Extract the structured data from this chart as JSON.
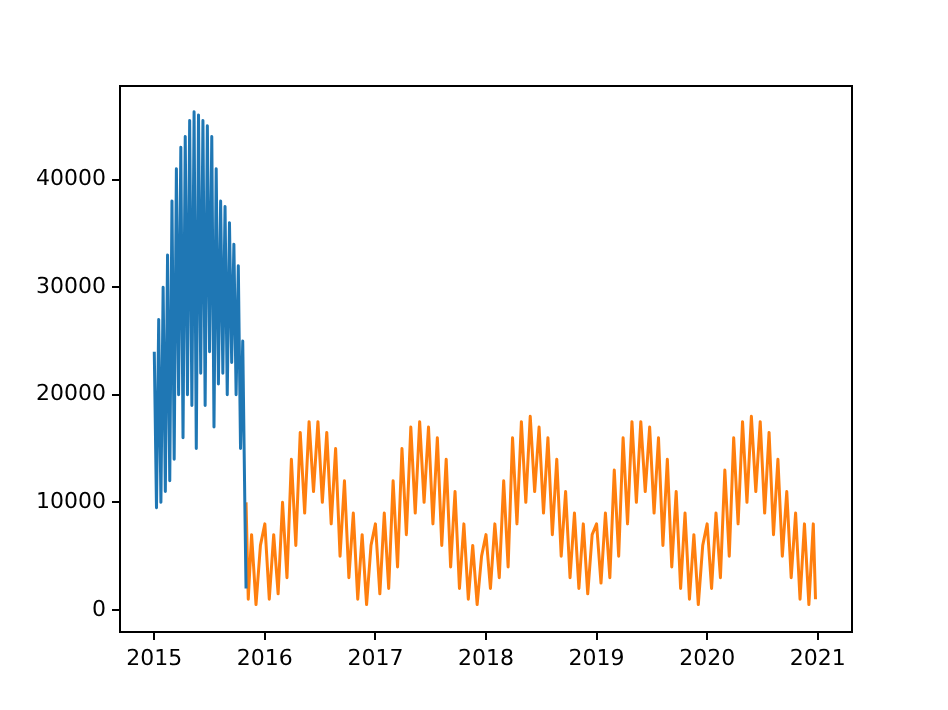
{
  "chart_data": {
    "type": "line",
    "xlim": [
      2014.69,
      2021.31
    ],
    "ylim": [
      -2050,
      48700
    ],
    "xticks": [
      2015,
      2016,
      2017,
      2018,
      2019,
      2020,
      2021
    ],
    "yticks": [
      0,
      10000,
      20000,
      30000,
      40000
    ],
    "series": [
      {
        "color": "#1f77b4",
        "x": [
          2015.0,
          2015.02,
          2015.04,
          2015.06,
          2015.08,
          2015.1,
          2015.12,
          2015.14,
          2015.16,
          2015.18,
          2015.2,
          2015.22,
          2015.24,
          2015.26,
          2015.28,
          2015.3,
          2015.32,
          2015.34,
          2015.36,
          2015.38,
          2015.4,
          2015.42,
          2015.44,
          2015.46,
          2015.48,
          2015.5,
          2015.52,
          2015.54,
          2015.56,
          2015.58,
          2015.6,
          2015.62,
          2015.64,
          2015.66,
          2015.68,
          2015.7,
          2015.72,
          2015.74,
          2015.76,
          2015.78,
          2015.8,
          2015.82,
          2015.83
        ],
        "values": [
          24000,
          9500,
          27000,
          10000,
          30000,
          11000,
          33000,
          12000,
          38000,
          14000,
          41000,
          20000,
          43000,
          16000,
          44000,
          20000,
          45500,
          19000,
          46300,
          15000,
          46000,
          22000,
          45500,
          19000,
          45000,
          24000,
          44000,
          17000,
          41000,
          21000,
          38000,
          22000,
          37500,
          20000,
          36000,
          23000,
          34000,
          20000,
          32000,
          15000,
          25000,
          9000,
          2000
        ]
      },
      {
        "color": "#ff7f0e",
        "x": [
          2015.83,
          2015.85,
          2015.88,
          2015.92,
          2015.96,
          2016.0,
          2016.04,
          2016.08,
          2016.12,
          2016.16,
          2016.2,
          2016.24,
          2016.28,
          2016.32,
          2016.36,
          2016.4,
          2016.44,
          2016.48,
          2016.52,
          2016.56,
          2016.6,
          2016.64,
          2016.68,
          2016.72,
          2016.76,
          2016.8,
          2016.84,
          2016.88,
          2016.92,
          2016.96,
          2017.0,
          2017.04,
          2017.08,
          2017.12,
          2017.16,
          2017.2,
          2017.24,
          2017.28,
          2017.32,
          2017.36,
          2017.4,
          2017.44,
          2017.48,
          2017.52,
          2017.56,
          2017.6,
          2017.64,
          2017.68,
          2017.72,
          2017.76,
          2017.8,
          2017.84,
          2017.88,
          2017.92,
          2017.96,
          2018.0,
          2018.04,
          2018.08,
          2018.12,
          2018.16,
          2018.2,
          2018.24,
          2018.28,
          2018.32,
          2018.36,
          2018.4,
          2018.44,
          2018.48,
          2018.52,
          2018.56,
          2018.6,
          2018.64,
          2018.68,
          2018.72,
          2018.76,
          2018.8,
          2018.84,
          2018.88,
          2018.92,
          2018.96,
          2019.0,
          2019.04,
          2019.08,
          2019.12,
          2019.16,
          2019.2,
          2019.24,
          2019.28,
          2019.32,
          2019.36,
          2019.4,
          2019.44,
          2019.48,
          2019.52,
          2019.56,
          2019.6,
          2019.64,
          2019.68,
          2019.72,
          2019.76,
          2019.8,
          2019.84,
          2019.88,
          2019.92,
          2019.96,
          2020.0,
          2020.04,
          2020.08,
          2020.12,
          2020.16,
          2020.2,
          2020.24,
          2020.28,
          2020.32,
          2020.36,
          2020.4,
          2020.44,
          2020.48,
          2020.52,
          2020.56,
          2020.6,
          2020.64,
          2020.68,
          2020.72,
          2020.76,
          2020.8,
          2020.84,
          2020.88,
          2020.92,
          2020.96,
          2020.98
        ],
        "values": [
          10000,
          1000,
          7000,
          500,
          6000,
          8000,
          1000,
          7000,
          1500,
          10000,
          3000,
          14000,
          6000,
          16500,
          9000,
          17500,
          11000,
          17500,
          10000,
          16500,
          8000,
          15000,
          5000,
          12000,
          3000,
          9000,
          1000,
          7000,
          500,
          6000,
          8000,
          1500,
          9000,
          2000,
          12000,
          4000,
          15000,
          7000,
          17000,
          9000,
          17500,
          10000,
          17000,
          8000,
          16000,
          6000,
          14000,
          4000,
          11000,
          2000,
          8000,
          1000,
          6000,
          500,
          5000,
          7000,
          2000,
          8000,
          3000,
          12000,
          4000,
          16000,
          8000,
          17500,
          10000,
          18000,
          11000,
          17000,
          9000,
          16000,
          7000,
          14000,
          5000,
          11000,
          3000,
          9000,
          2000,
          8000,
          1500,
          7000,
          8000,
          2500,
          9000,
          3000,
          13000,
          5000,
          16000,
          8000,
          17500,
          10000,
          17500,
          11000,
          17000,
          9000,
          16000,
          6000,
          14000,
          4000,
          11000,
          2000,
          9000,
          1000,
          7000,
          500,
          6000,
          8000,
          2000,
          9000,
          3000,
          13000,
          5000,
          16000,
          8000,
          17500,
          10000,
          18000,
          11000,
          17500,
          9000,
          16500,
          7000,
          14000,
          5000,
          11000,
          3000,
          9000,
          1000,
          8000,
          500,
          8000,
          1000
        ]
      }
    ]
  }
}
